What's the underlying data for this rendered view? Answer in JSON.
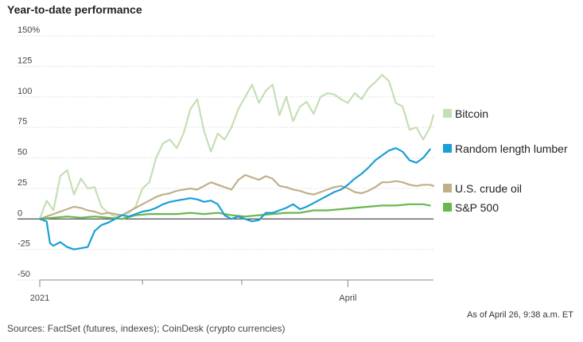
{
  "chart_data": {
    "type": "line",
    "title": "Year-to-date performance",
    "ylim": [
      -50,
      150
    ],
    "yticks": [
      "150%",
      "125",
      "100",
      "75",
      "50",
      "25",
      "0",
      "-25",
      "-50"
    ],
    "ytick_values": [
      150,
      125,
      100,
      75,
      50,
      25,
      0,
      -25,
      -50
    ],
    "x_labels": [
      "2021",
      "April"
    ],
    "x_label_days": [
      0,
      90
    ],
    "x_minor_ticks": [
      30,
      59
    ],
    "xlim": [
      0,
      115
    ],
    "grid": true,
    "legend_position": "right",
    "series": [
      {
        "name": "Bitcoin",
        "color": "#c5dfb5",
        "x": [
          0,
          2,
          4,
          6,
          8,
          10,
          12,
          14,
          16,
          18,
          20,
          22,
          24,
          26,
          28,
          30,
          32,
          34,
          36,
          38,
          40,
          42,
          44,
          46,
          48,
          50,
          52,
          54,
          56,
          58,
          60,
          62,
          64,
          66,
          68,
          70,
          72,
          74,
          76,
          78,
          80,
          82,
          84,
          86,
          88,
          90,
          92,
          94,
          96,
          98,
          100,
          102,
          104,
          106,
          108,
          110,
          112,
          114,
          115
        ],
        "values": [
          0,
          15,
          7,
          35,
          40,
          20,
          33,
          25,
          26,
          10,
          5,
          2,
          3,
          5,
          10,
          25,
          30,
          50,
          62,
          65,
          58,
          70,
          90,
          98,
          72,
          55,
          70,
          65,
          75,
          90,
          100,
          110,
          95,
          105,
          110,
          85,
          100,
          80,
          92,
          96,
          86,
          100,
          103,
          102,
          98,
          95,
          103,
          98,
          107,
          112,
          118,
          113,
          95,
          92,
          73,
          75,
          65,
          75,
          85
        ]
      },
      {
        "name": "Random length lumber",
        "color": "#1a9fd6",
        "x": [
          0,
          2,
          3,
          4,
          6,
          8,
          10,
          12,
          14,
          16,
          18,
          20,
          22,
          24,
          26,
          28,
          30,
          32,
          34,
          36,
          38,
          40,
          42,
          44,
          46,
          48,
          50,
          52,
          54,
          56,
          58,
          60,
          62,
          64,
          66,
          68,
          70,
          72,
          74,
          76,
          78,
          80,
          82,
          84,
          86,
          88,
          90,
          92,
          94,
          96,
          98,
          100,
          102,
          104,
          106,
          108,
          110,
          112,
          114
        ],
        "values": [
          0,
          -2,
          -20,
          -22,
          -19,
          -23,
          -25,
          -24,
          -23,
          -10,
          -5,
          -3,
          0,
          3,
          2,
          4,
          6,
          7,
          9,
          12,
          14,
          15,
          16,
          17,
          16,
          14,
          15,
          12,
          3,
          0,
          2,
          0,
          -2,
          -1,
          5,
          5,
          7,
          9,
          12,
          8,
          10,
          13,
          16,
          19,
          22,
          24,
          28,
          33,
          37,
          42,
          48,
          52,
          56,
          58,
          55,
          48,
          46,
          50,
          57
        ]
      },
      {
        "name": "U.S. crude oil",
        "color": "#bfb08a",
        "x": [
          0,
          2,
          4,
          6,
          8,
          10,
          12,
          14,
          16,
          18,
          20,
          22,
          24,
          26,
          28,
          30,
          32,
          34,
          36,
          38,
          40,
          42,
          44,
          46,
          48,
          50,
          52,
          54,
          56,
          58,
          60,
          62,
          64,
          66,
          68,
          70,
          72,
          74,
          76,
          78,
          80,
          82,
          84,
          86,
          88,
          90,
          92,
          94,
          96,
          98,
          100,
          102,
          104,
          106,
          108,
          110,
          112,
          114,
          115
        ],
        "values": [
          0,
          2,
          4,
          6,
          8,
          10,
          9,
          7,
          6,
          4,
          5,
          4,
          3,
          6,
          9,
          12,
          15,
          18,
          20,
          21,
          23,
          24,
          25,
          24,
          27,
          30,
          28,
          26,
          24,
          32,
          36,
          34,
          32,
          35,
          33,
          27,
          26,
          24,
          23,
          21,
          20,
          22,
          24,
          26,
          27,
          25,
          22,
          21,
          23,
          26,
          30,
          30,
          31,
          30,
          28,
          27,
          28,
          28,
          27
        ]
      },
      {
        "name": "S&P 500",
        "color": "#67b84d",
        "x": [
          0,
          4,
          8,
          12,
          16,
          20,
          24,
          28,
          32,
          36,
          40,
          44,
          48,
          52,
          56,
          60,
          64,
          68,
          72,
          76,
          80,
          84,
          88,
          92,
          96,
          100,
          104,
          108,
          112,
          114
        ],
        "values": [
          0,
          1,
          2,
          1,
          2,
          1,
          0,
          3,
          4,
          4,
          4,
          5,
          4,
          5,
          3,
          2,
          3,
          4,
          5,
          5,
          7,
          7,
          8,
          9,
          10,
          11,
          11,
          12,
          12,
          11
        ]
      }
    ]
  },
  "asof": "As of April 26, 9:38 a.m. ET",
  "source": "Sources: FactSet (futures, indexes); CoinDesk (crypto currencies)"
}
